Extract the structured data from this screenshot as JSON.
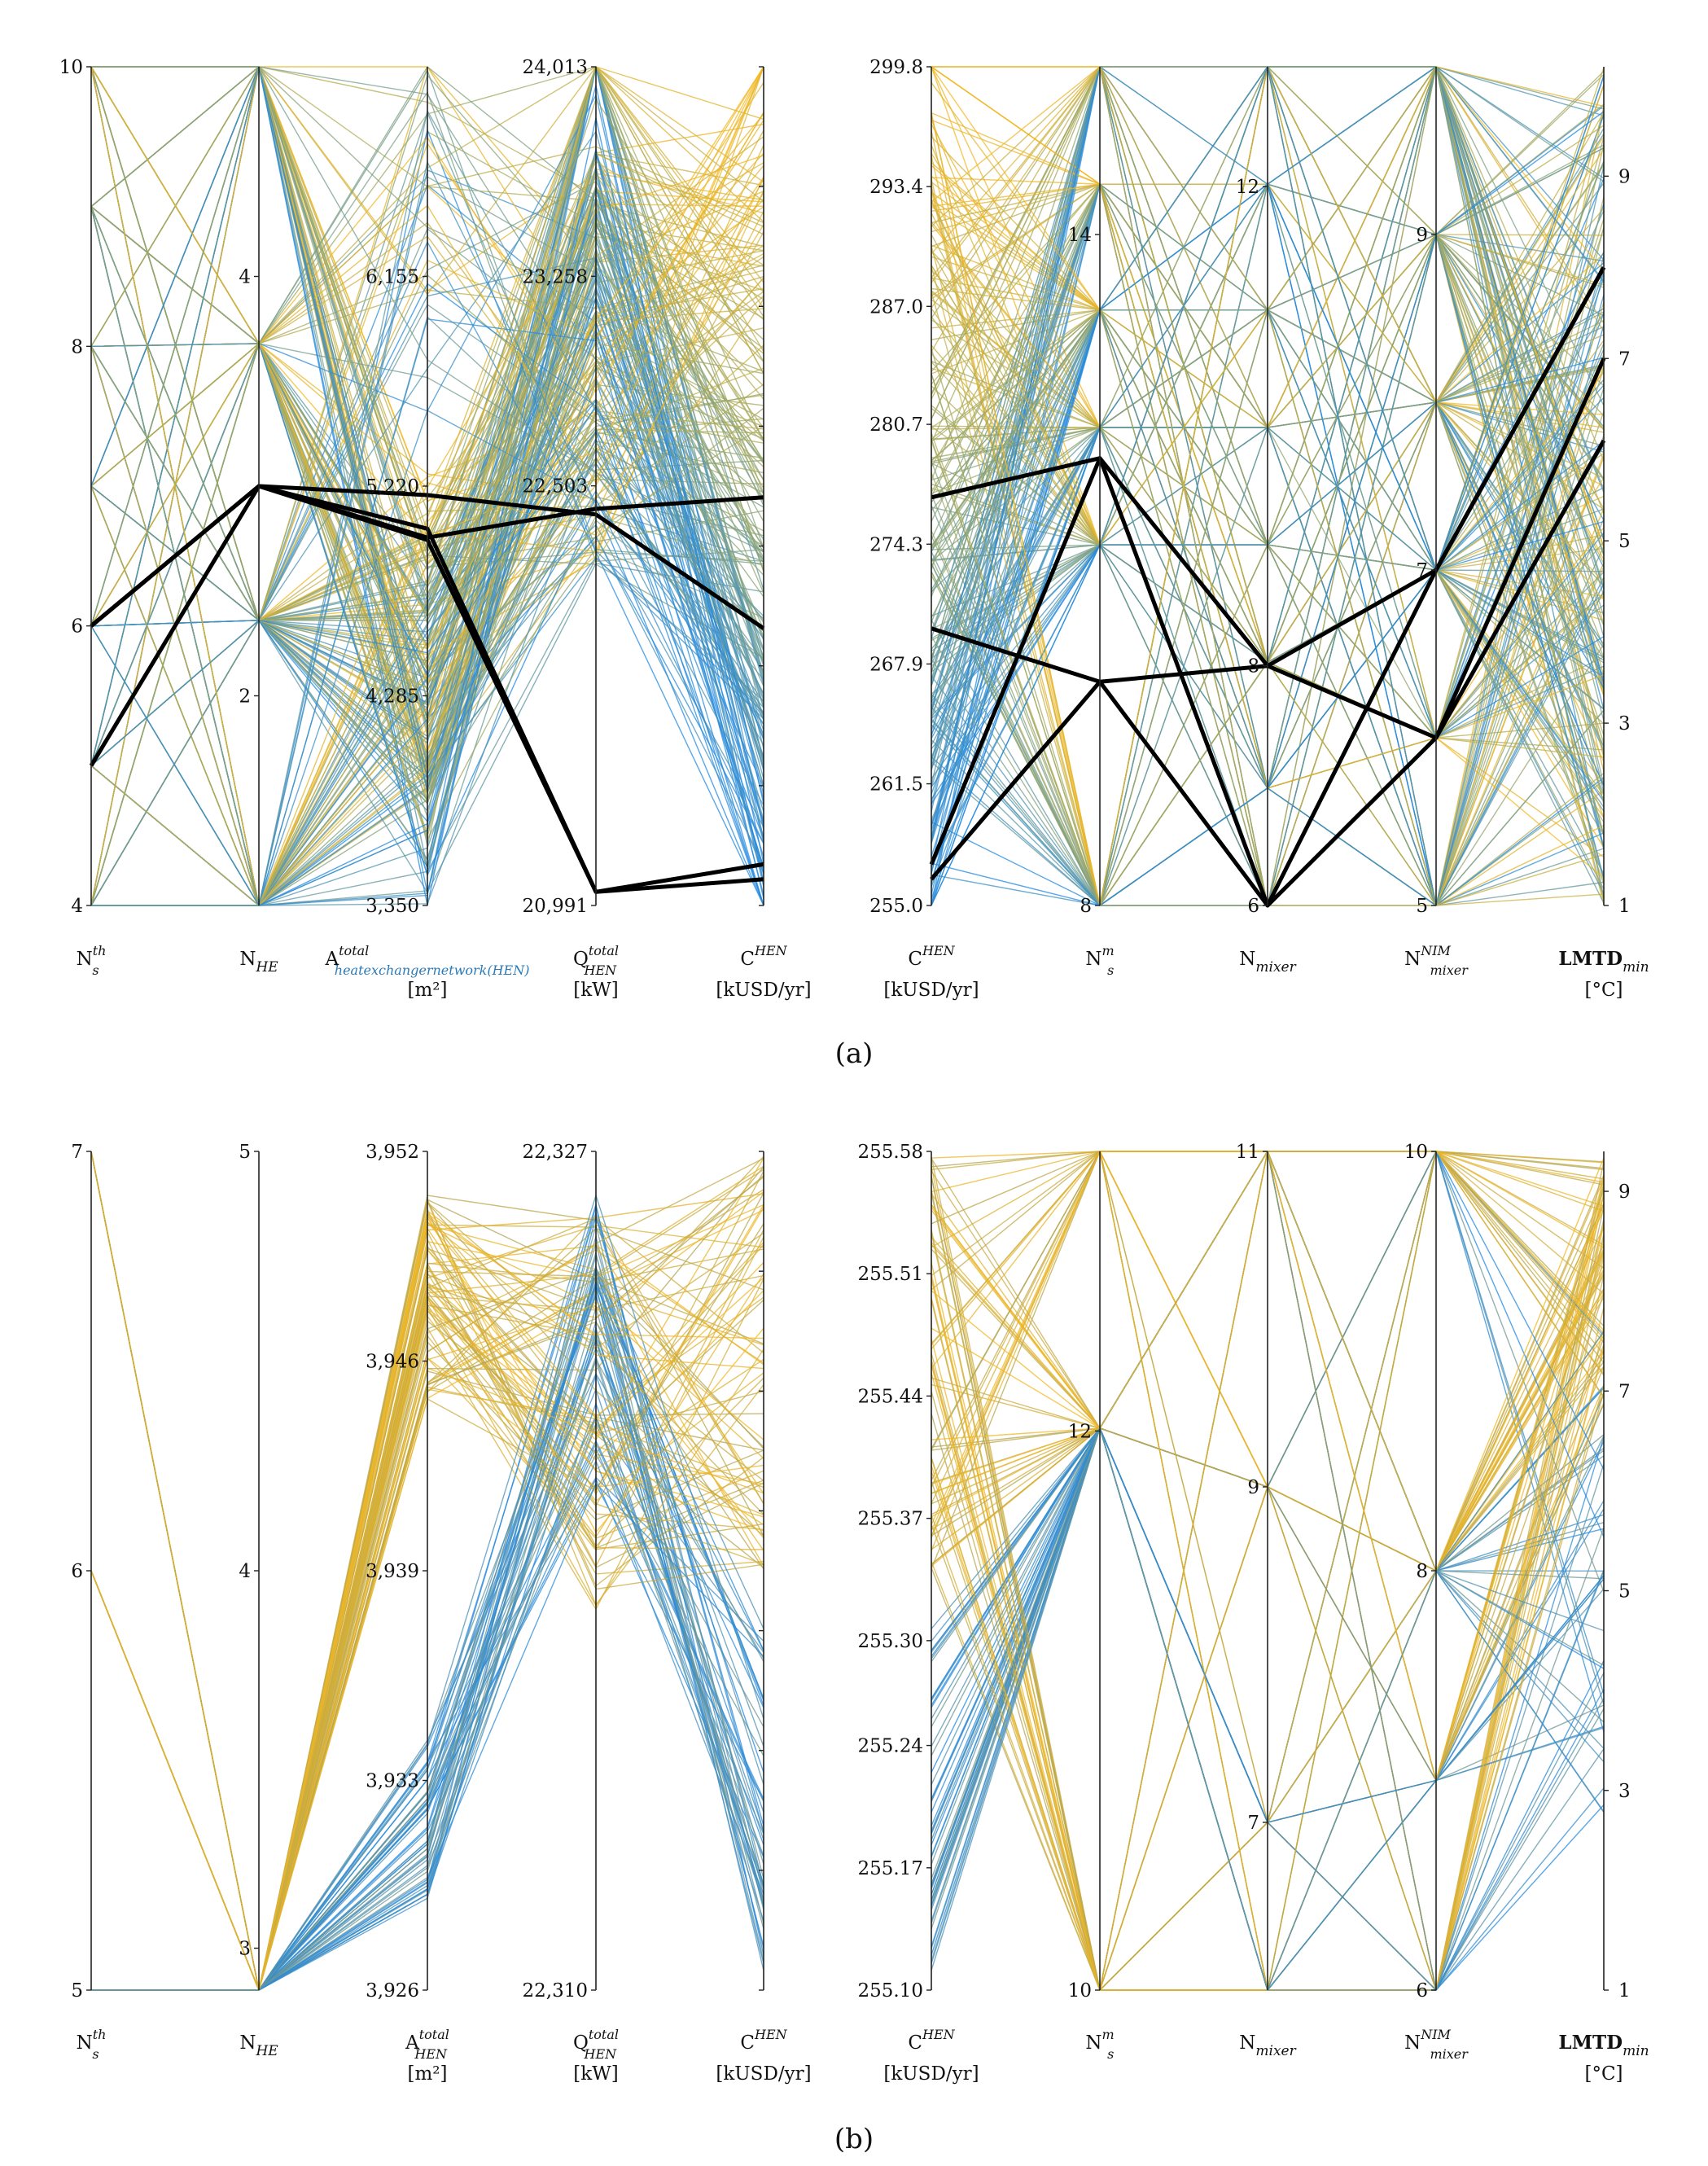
{
  "chart_data": [
    {
      "type": "parallel-coordinates",
      "panel_label": "(a)",
      "title": "",
      "colors": {
        "high": "#f5b820",
        "mid": "#9aa86a",
        "low": "#1e88e5",
        "highlight": "#000000"
      },
      "groups": [
        {
          "axes": [
            {
              "key": "Ns_th",
              "label_main": "N",
              "label_sub": "s",
              "label_sup": "th",
              "unit": "",
              "range": [
                4,
                10
              ],
              "ticks_left": [
                "10",
                "8",
                "6",
                "4"
              ],
              "ticks_left_vals": [
                10,
                8,
                6,
                4
              ],
              "ticks_right": [],
              "ticks_right_vals": []
            },
            {
              "key": "NHE",
              "label_main": "N",
              "label_sub": "HE",
              "label_sup": "",
              "unit": "",
              "range": [
                1,
                5
              ],
              "ticks_left": [
                "4",
                "2"
              ],
              "ticks_left_vals": [
                4,
                2
              ],
              "ticks_right": [],
              "ticks_right_vals": []
            },
            {
              "key": "A_total",
              "label_main": "A",
              "label_sub": "heatexchangernetwork(HEN)",
              "label_sup": "total",
              "unit": "[m²]",
              "range": [
                3350,
                7090
              ],
              "ticks_left": [
                "6,155",
                "5,220",
                "4,285",
                "3,350"
              ],
              "ticks_left_vals": [
                6155,
                5220,
                4285,
                3350
              ],
              "ticks_right": [],
              "ticks_right_vals": []
            },
            {
              "key": "Q_total",
              "label_main": "Q",
              "label_sub": "HEN",
              "label_sup": "total",
              "unit": "[kW]",
              "range": [
                20991,
                24013
              ],
              "ticks_left": [
                "24,013",
                "23,258",
                "22,503",
                "20,991"
              ],
              "ticks_left_vals": [
                24013,
                23258,
                22503,
                20991
              ],
              "ticks_right": [],
              "ticks_right_vals": []
            },
            {
              "key": "C_HEN",
              "label_main": "C",
              "label_sub": "",
              "label_sup": "HEN",
              "unit": "[kUSD/yr]",
              "range": [
                255.0,
                299.8
              ],
              "ticks_left": [],
              "ticks_left_vals": [],
              "ticks_right": [],
              "ticks_right_vals": []
            }
          ]
        },
        {
          "axes": [
            {
              "key": "C_HEN",
              "label_main": "C",
              "label_sub": "",
              "label_sup": "HEN",
              "unit": "[kUSD/yr]",
              "range": [
                255.0,
                299.8
              ],
              "ticks_left": [
                "299.8",
                "293.4",
                "287.0",
                "280.7",
                "274.3",
                "267.9",
                "261.5",
                "255.0"
              ],
              "ticks_left_vals": [
                299.8,
                293.4,
                287.0,
                280.7,
                274.3,
                267.9,
                261.5,
                255.0
              ],
              "ticks_right": [],
              "ticks_right_vals": []
            },
            {
              "key": "Ns_m",
              "label_main": "N",
              "label_sub": "s",
              "label_sup": "m",
              "unit": "",
              "range": [
                8,
                15.5
              ],
              "ticks_left": [
                "14",
                "8"
              ],
              "ticks_left_vals": [
                14,
                8
              ],
              "ticks_right": [],
              "ticks_right_vals": []
            },
            {
              "key": "N_mixer",
              "label_main": "N",
              "label_sub": "mixer",
              "label_sup": "",
              "unit": "",
              "range": [
                6,
                13
              ],
              "ticks_left": [
                "12",
                "8",
                "6"
              ],
              "ticks_left_vals": [
                12,
                8,
                6
              ],
              "ticks_right": [],
              "ticks_right_vals": []
            },
            {
              "key": "N_NIM",
              "label_main": "N",
              "label_sub": "mixer",
              "label_sup": "NIM",
              "unit": "",
              "range": [
                5,
                10
              ],
              "ticks_left": [
                "9",
                "7",
                "5"
              ],
              "ticks_left_vals": [
                9,
                7,
                5
              ],
              "ticks_right": [],
              "ticks_right_vals": []
            },
            {
              "key": "LMTD",
              "label_main": "LMTD",
              "label_sub": "min",
              "label_sup": "",
              "unit": "[°C]",
              "range": [
                1,
                10.2
              ],
              "ticks_left": [],
              "ticks_left_vals": [],
              "ticks_right": [
                "9",
                "7",
                "5",
                "3",
                "1"
              ],
              "ticks_right_vals": [
                9,
                7,
                5,
                3,
                1
              ]
            }
          ]
        }
      ],
      "highlighted_solutions": [
        [
          6,
          3,
          5030,
          21040,
          257.2,
          257.2,
          12,
          6,
          7,
          8
        ],
        [
          5,
          3,
          4980,
          21040,
          256.4,
          256.4,
          10,
          8,
          6,
          7
        ],
        [
          6,
          3,
          5180,
          22400,
          269.8,
          269.8,
          10,
          6,
          6,
          6.1
        ],
        [
          6,
          3,
          4990,
          22420,
          276.8,
          276.8,
          12,
          8,
          7,
          8
        ]
      ]
    },
    {
      "type": "parallel-coordinates",
      "panel_label": "(b)",
      "title": "",
      "colors": {
        "high": "#f5b820",
        "mid": "#a9a35a",
        "low": "#1e88e5"
      },
      "groups": [
        {
          "axes": [
            {
              "key": "Ns_th",
              "label_main": "N",
              "label_sub": "s",
              "label_sup": "th",
              "unit": "",
              "range": [
                5,
                7
              ],
              "ticks_left": [
                "7",
                "6",
                "5"
              ],
              "ticks_left_vals": [
                7,
                6,
                5
              ],
              "ticks_right": [],
              "ticks_right_vals": []
            },
            {
              "key": "NHE",
              "label_main": "N",
              "label_sub": "HE",
              "label_sup": "",
              "unit": "",
              "range": [
                3,
                5
              ],
              "ticks_left": [
                "5",
                "4",
                "3"
              ],
              "ticks_left_vals": [
                5,
                4,
                3.1
              ],
              "ticks_right": [],
              "ticks_right_vals": []
            },
            {
              "key": "A_total",
              "label_main": "A",
              "label_sub": "HEN",
              "label_sup": "total",
              "unit": "[m²]",
              "range": [
                3926,
                3952
              ],
              "ticks_left": [
                "3,952",
                "3,946",
                "3,939",
                "3,933",
                "3,926"
              ],
              "ticks_left_vals": [
                3952,
                3945.5,
                3939,
                3932.5,
                3926
              ],
              "ticks_right": [],
              "ticks_right_vals": []
            },
            {
              "key": "Q_total",
              "label_main": "Q",
              "label_sub": "HEN",
              "label_sup": "total",
              "unit": "[kW]",
              "range": [
                22310,
                22327
              ],
              "ticks_left": [
                "22,327",
                "22,310"
              ],
              "ticks_left_vals": [
                22327,
                22310
              ],
              "ticks_right": [],
              "ticks_right_vals": []
            },
            {
              "key": "C_HEN",
              "label_main": "C",
              "label_sub": "",
              "label_sup": "HEN",
              "unit": "[kUSD/yr]",
              "range": [
                255.1,
                255.58
              ],
              "ticks_left": [],
              "ticks_left_vals": [],
              "ticks_right": [],
              "ticks_right_vals": []
            }
          ]
        },
        {
          "axes": [
            {
              "key": "C_HEN",
              "label_main": "C",
              "label_sub": "",
              "label_sup": "HEN",
              "unit": "[kUSD/yr]",
              "range": [
                255.1,
                255.58
              ],
              "ticks_left": [
                "255.58",
                "255.51",
                "255.44",
                "255.37",
                "255.30",
                "255.24",
                "255.17",
                "255.10"
              ],
              "ticks_left_vals": [
                255.58,
                255.51,
                255.44,
                255.37,
                255.3,
                255.24,
                255.17,
                255.1
              ],
              "ticks_right": [],
              "ticks_right_vals": []
            },
            {
              "key": "Ns_m",
              "label_main": "N",
              "label_sub": "s",
              "label_sup": "m",
              "unit": "",
              "range": [
                10,
                13
              ],
              "ticks_left": [
                "12",
                "10"
              ],
              "ticks_left_vals": [
                12,
                10
              ],
              "ticks_right": [],
              "ticks_right_vals": []
            },
            {
              "key": "N_mixer",
              "label_main": "N",
              "label_sub": "mixer",
              "label_sup": "",
              "unit": "",
              "range": [
                6,
                11
              ],
              "ticks_left": [
                "11",
                "9",
                "7"
              ],
              "ticks_left_vals": [
                11,
                9,
                7
              ],
              "ticks_right": [],
              "ticks_right_vals": []
            },
            {
              "key": "N_NIM",
              "label_main": "N",
              "label_sub": "mixer",
              "label_sup": "NIM",
              "unit": "",
              "range": [
                6,
                10
              ],
              "ticks_left": [
                "10",
                "8",
                "6"
              ],
              "ticks_left_vals": [
                10,
                8,
                6
              ],
              "ticks_right": [],
              "ticks_right_vals": []
            },
            {
              "key": "LMTD",
              "label_main": "LMTD",
              "label_sub": "min",
              "label_sup": "",
              "unit": "[°C]",
              "range": [
                1,
                9.4
              ],
              "ticks_left": [],
              "ticks_left_vals": [],
              "ticks_right": [
                "9",
                "7",
                "5",
                "3",
                "1"
              ],
              "ticks_right_vals": [
                9,
                7,
                5,
                3,
                1
              ]
            }
          ]
        }
      ],
      "highlighted_solutions": []
    }
  ]
}
